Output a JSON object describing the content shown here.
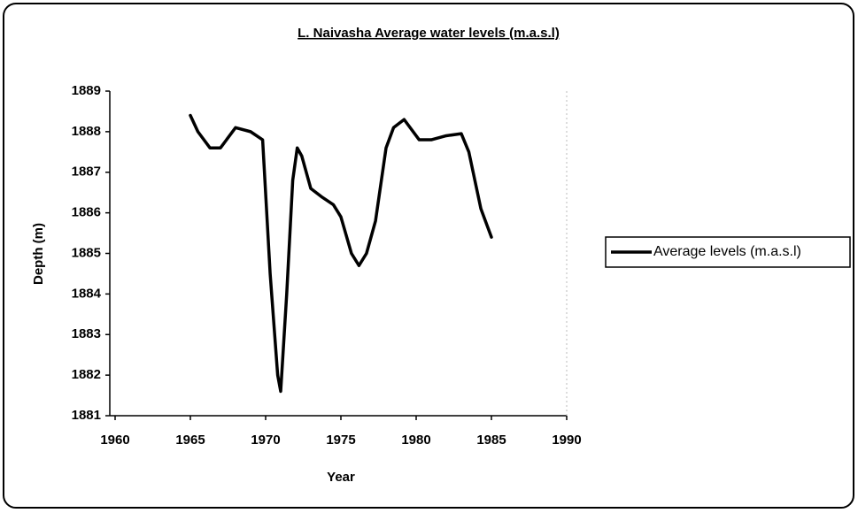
{
  "chart_data": {
    "type": "line",
    "title": "L. Naivasha Average water  levels (m.a.s.l)",
    "x_label": "Year",
    "y_label": "Depth (m)",
    "xlim": [
      1960,
      1990
    ],
    "xticks": [
      1960,
      1965,
      1970,
      1975,
      1980,
      1985,
      1990
    ],
    "ylim": [
      1881,
      1889
    ],
    "yticks": [
      1881,
      1882,
      1883,
      1884,
      1885,
      1886,
      1887,
      1888,
      1889
    ],
    "legend": "right",
    "x": [
      1965,
      1965.5,
      1966.3,
      1967,
      1968,
      1969,
      1969.8,
      1970.3,
      1970.8,
      1971,
      1971.4,
      1971.8,
      1972.1,
      1972.4,
      1973,
      1973.7,
      1974.5,
      1975,
      1975.7,
      1976.2,
      1976.7,
      1977.3,
      1978,
      1978.5,
      1979.2,
      1980.2,
      1981,
      1982,
      1983,
      1983.5,
      1984.3,
      1985
    ],
    "series": [
      {
        "name": "Average levels (m.a.s.l)",
        "color": "#000000",
        "values": [
          1888.4,
          1888.0,
          1887.6,
          1887.6,
          1888.1,
          1888.0,
          1887.8,
          1884.5,
          1882.0,
          1881.6,
          1884.0,
          1886.8,
          1887.6,
          1887.4,
          1886.6,
          1886.4,
          1886.2,
          1885.9,
          1885.0,
          1884.7,
          1885.0,
          1885.8,
          1887.6,
          1888.1,
          1888.3,
          1887.8,
          1887.8,
          1887.9,
          1887.95,
          1887.5,
          1886.1,
          1885.4
        ]
      }
    ]
  }
}
